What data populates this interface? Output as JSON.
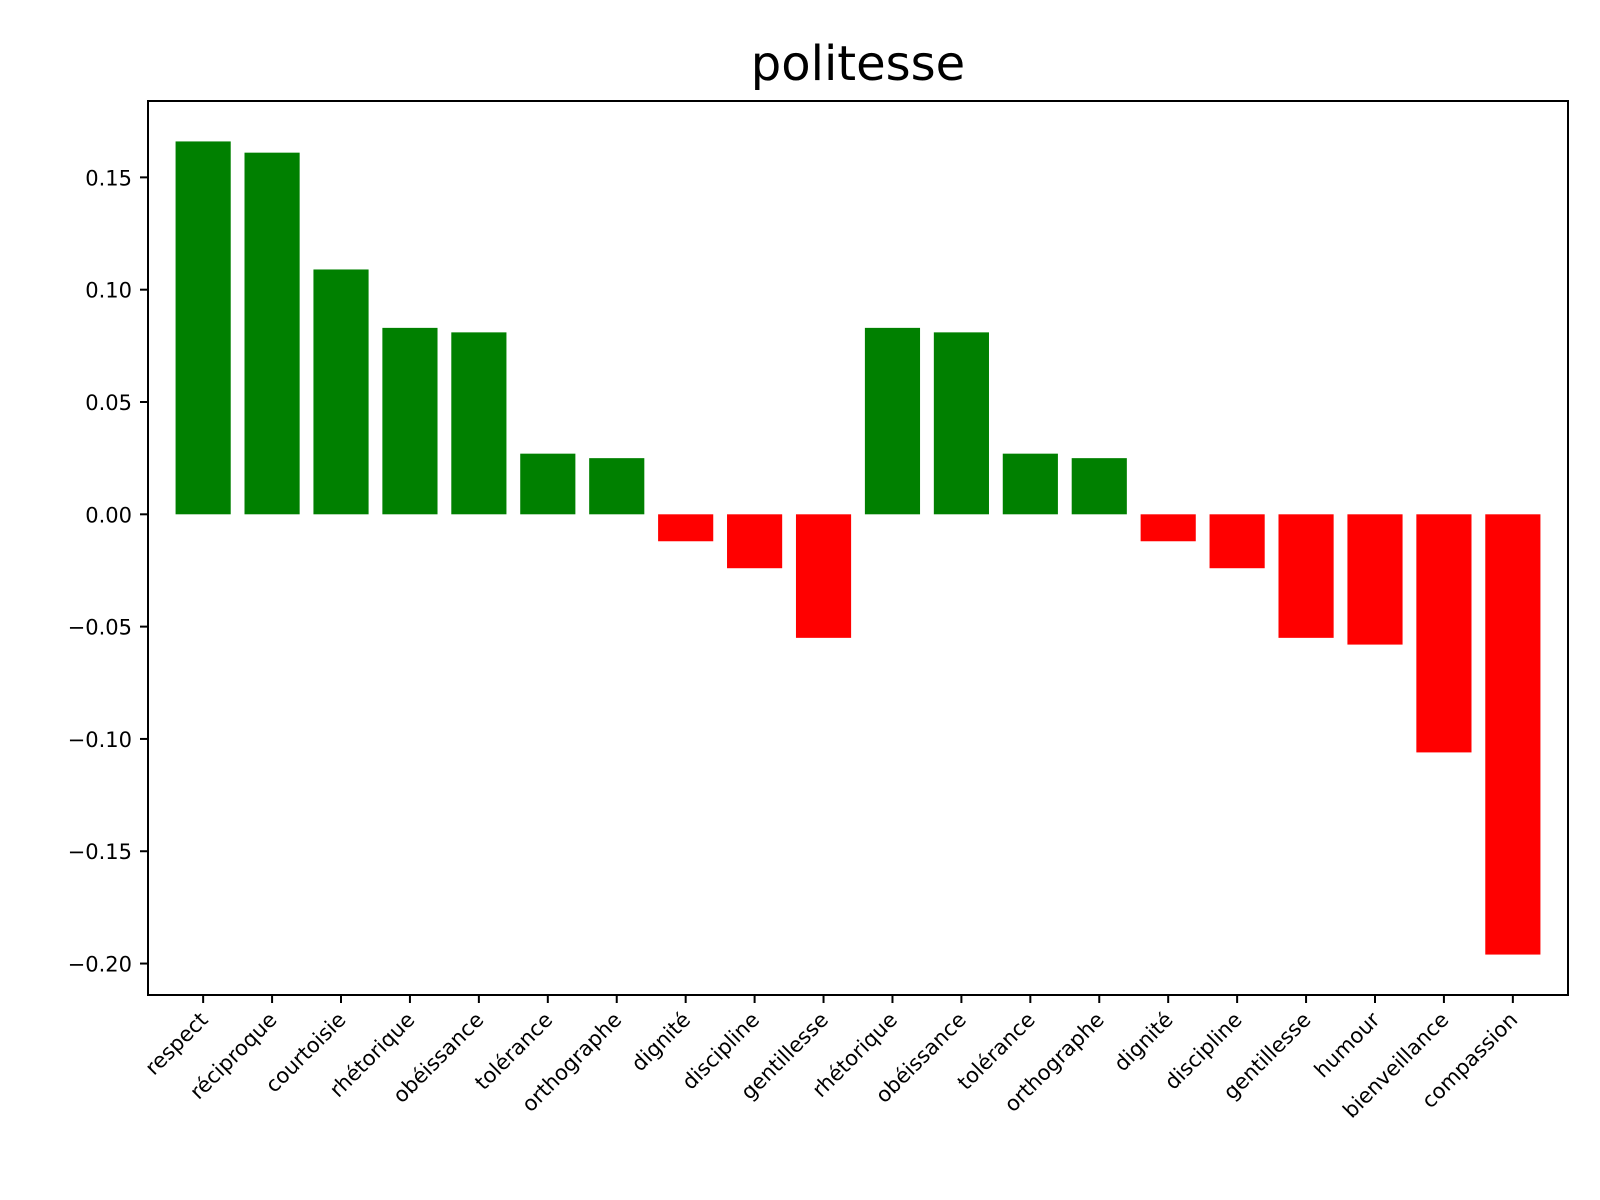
{
  "chart_data": {
    "type": "bar",
    "title": "politesse",
    "xlabel": "",
    "ylabel": "",
    "categories": [
      "respect",
      "réciproque",
      "courtoisie",
      "rhétorique",
      "obéissance",
      "tolérance",
      "orthographe",
      "dignité",
      "discipline",
      "gentillesse",
      "rhétorique",
      "obéissance",
      "tolérance",
      "orthographe",
      "dignité",
      "discipline",
      "gentillesse",
      "humour",
      "bienveillance",
      "compassion"
    ],
    "values": [
      0.166,
      0.161,
      0.109,
      0.083,
      0.081,
      0.027,
      0.025,
      -0.012,
      -0.024,
      -0.055,
      0.083,
      0.081,
      0.027,
      0.025,
      -0.012,
      -0.024,
      -0.055,
      -0.058,
      -0.106,
      -0.196
    ],
    "ylim": [
      -0.214,
      0.184
    ],
    "yticks": [
      "−0.20",
      "−0.15",
      "−0.10",
      "−0.05",
      "0.00",
      "0.05",
      "0.10",
      "0.15"
    ],
    "ytick_values": [
      -0.2,
      -0.15,
      -0.1,
      -0.05,
      0.0,
      0.05,
      0.1,
      0.15
    ],
    "grid": false,
    "legend": "none",
    "colors": {
      "positive": "#008000",
      "negative": "#ff0000",
      "axis": "#000000",
      "background": "#ffffff"
    }
  }
}
